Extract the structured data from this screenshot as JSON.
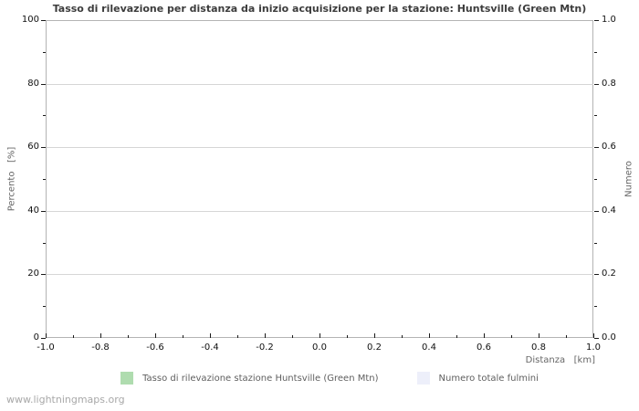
{
  "chart_data": {
    "type": "line",
    "title": "Tasso di rilevazione per distanza da inizio acquisizione per la stazione: Huntsville (Green Mtn)",
    "xlabel": "Distanza   [km]",
    "ylabel_left": "Percento   [%]",
    "ylabel_right": "Numero",
    "xlim": [
      -1.0,
      1.0
    ],
    "ylim_left": [
      0,
      100
    ],
    "ylim_right": [
      0.0,
      1.0
    ],
    "x_tick_labels": [
      "-1.0",
      "-0.8",
      "-0.6",
      "-0.4",
      "-0.2",
      "0.0",
      "0.2",
      "0.4",
      "0.6",
      "0.8",
      "1.0"
    ],
    "y_left_tick_labels": [
      "0",
      "20",
      "40",
      "60",
      "80",
      "100"
    ],
    "y_right_tick_labels": [
      "0.0",
      "0.2",
      "0.4",
      "0.6",
      "0.8",
      "1.0"
    ],
    "minor_ticks_between_majors": 1,
    "grid": "horizontal-major-only",
    "legend_position": "bottom-center",
    "legend": [
      {
        "label": "Tasso di rilevazione stazione Huntsville (Green Mtn)",
        "color": "#afdcaf"
      },
      {
        "label": "Numero totale fulmini",
        "color": "#edeffa"
      }
    ],
    "series": [
      {
        "name": "Tasso di rilevazione stazione Huntsville (Green Mtn)",
        "axis": "left",
        "x": [],
        "values": []
      },
      {
        "name": "Numero totale fulmini",
        "axis": "right",
        "x": [],
        "values": []
      }
    ]
  },
  "footer": {
    "watermark": "www.lightningmaps.org"
  }
}
